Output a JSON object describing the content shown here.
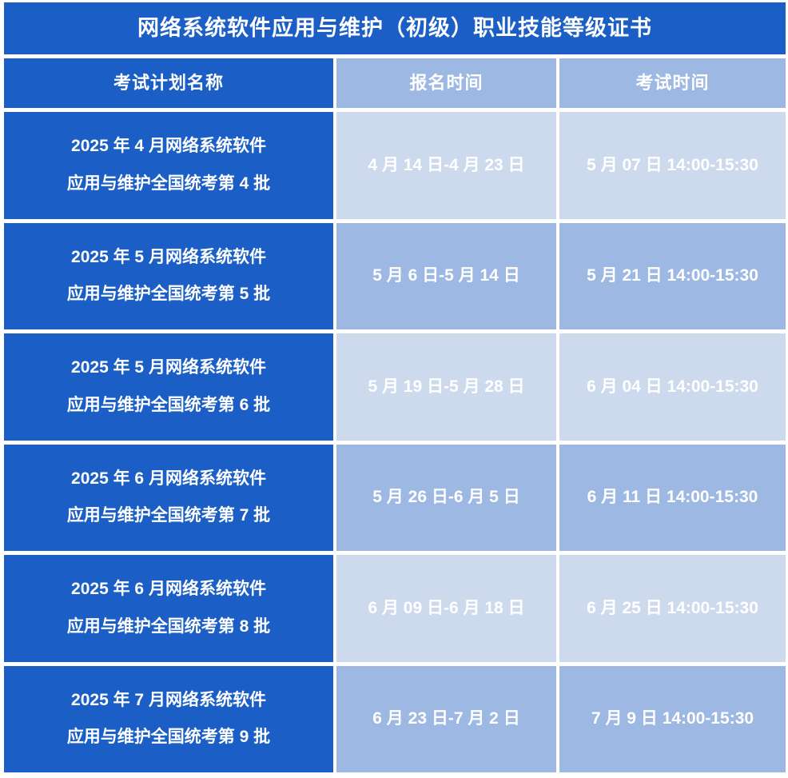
{
  "table": {
    "title": "网络系统软件应用与维护（初级）职业技能等级证书",
    "columns": {
      "plan": "考试计划名称",
      "registration": "报名时间",
      "exam": "考试时间"
    },
    "rows": [
      {
        "plan_line1": "2025 年 4 月网络系统软件",
        "plan_line2": "应用与维护全国统考第 4 批",
        "registration": "4 月 14 日-4 月 23 日",
        "exam": "5 月 07 日  14:00-15:30"
      },
      {
        "plan_line1": "2025 年 5 月网络系统软件",
        "plan_line2": "应用与维护全国统考第 5 批",
        "registration": "5 月 6 日-5 月 14 日",
        "exam": "5 月 21 日  14:00-15:30"
      },
      {
        "plan_line1": "2025 年 5 月网络系统软件",
        "plan_line2": "应用与维护全国统考第 6 批",
        "registration": "5 月 19 日-5 月 28 日",
        "exam": "6 月 04 日  14:00-15:30"
      },
      {
        "plan_line1": "2025 年 6 月网络系统软件",
        "plan_line2": "应用与维护全国统考第 7 批",
        "registration": "5 月 26 日-6 月 5 日",
        "exam": "6 月 11 日  14:00-15:30"
      },
      {
        "plan_line1": "2025 年 6 月网络系统软件",
        "plan_line2": "应用与维护全国统考第 8 批",
        "registration": "6 月 09 日-6 月 18 日",
        "exam": "6 月 25 日  14:00-15:30"
      },
      {
        "plan_line1": "2025 年 7 月网络系统软件",
        "plan_line2": "应用与维护全国统考第 9 批",
        "registration": "6 月 23 日-7 月 2 日",
        "exam": "7 月 9 日 14:00-15:30"
      }
    ],
    "colors": {
      "primary_blue": "#1B5FC6",
      "light_row": "#CDDAED",
      "periwinkle_row": "#9DB9E3",
      "text": "#FFFFFF",
      "gutter": "#FFFFFF"
    }
  }
}
